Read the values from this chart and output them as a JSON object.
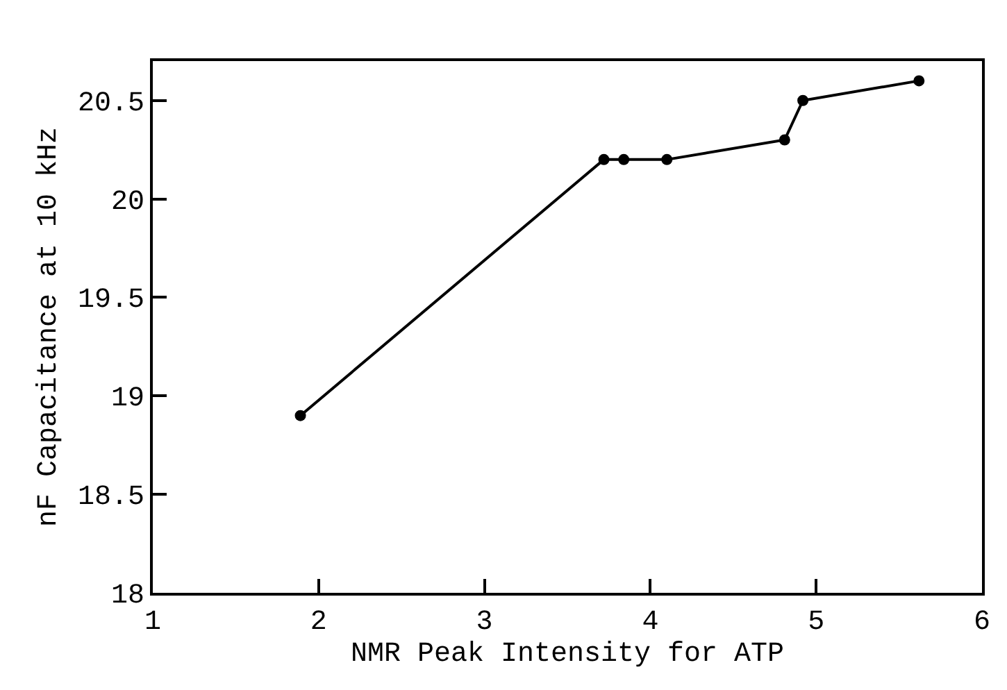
{
  "chart_data": {
    "type": "line",
    "xlabel": "NMR Peak Intensity for ATP",
    "ylabel": "nF Capacitance at 10 kHz",
    "x": [
      1.89,
      3.72,
      3.84,
      4.1,
      4.81,
      4.92,
      5.62
    ],
    "series": [
      {
        "color": "#000000",
        "values": [
          18.9,
          20.2,
          20.2,
          20.2,
          20.3,
          20.5,
          20.6
        ]
      }
    ],
    "xlim": [
      1,
      6
    ],
    "xticks": [
      1,
      2,
      3,
      4,
      5,
      6
    ],
    "ylim": [
      18,
      20.7
    ],
    "yticks": [
      18,
      18.5,
      19,
      19.5,
      20,
      20.5
    ],
    "legend": false,
    "marker": "circle",
    "line_style": "solid"
  }
}
